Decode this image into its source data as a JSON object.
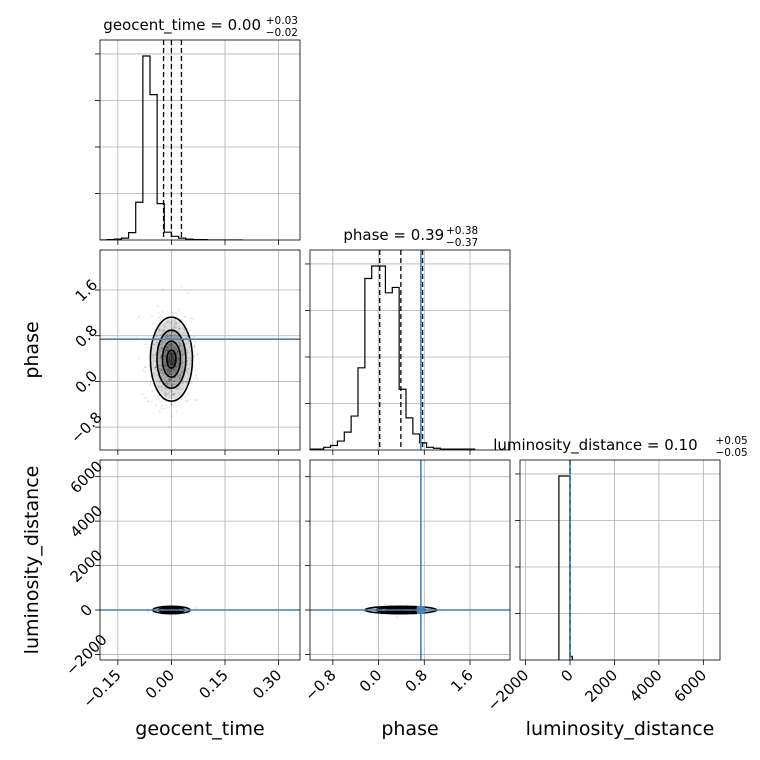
{
  "chart_data": {
    "type": "corner",
    "parameters": [
      {
        "name": "geocent_time",
        "axis_label": "geocent_time",
        "range": [
          -0.2,
          0.36
        ],
        "ticks": [
          -0.15,
          0.0,
          0.15,
          0.3
        ],
        "tick_labels": [
          "−0.15",
          "0.00",
          "0.15",
          "0.30"
        ],
        "median": 0.0,
        "plus": 0.03,
        "minus": 0.02,
        "title_prefix": "geocent_time = ",
        "title_value": "0.00",
        "title_plus": "+0.03",
        "title_minus": "−0.02",
        "quantiles": [
          -0.022,
          0.0,
          0.028
        ],
        "injection": null
      },
      {
        "name": "phase",
        "axis_label": "phase",
        "range": [
          -1.2,
          2.3
        ],
        "ticks": [
          -0.8,
          0.0,
          0.8,
          1.6
        ],
        "tick_labels": [
          "−0.8",
          "0.0",
          "0.8",
          "1.6"
        ],
        "median": 0.39,
        "plus": 0.38,
        "minus": 0.37,
        "title_prefix": "phase = ",
        "title_value": "0.39",
        "title_plus": "+0.38",
        "title_minus": "−0.37",
        "quantiles": [
          0.02,
          0.39,
          0.77
        ],
        "injection": 0.74
      },
      {
        "name": "luminosity_distance",
        "axis_label": "luminosity_distance",
        "range": [
          -2250,
          6750
        ],
        "ticks": [
          -2000,
          0,
          2000,
          4000,
          6000
        ],
        "tick_labels": [
          "−2000",
          "0",
          "2000",
          "4000",
          "6000"
        ],
        "median": 0.1,
        "plus": 0.05,
        "minus": 0.05,
        "title_prefix": "luminosity_distance = ",
        "title_value": "0.10",
        "title_plus": "+0.05",
        "title_minus": "−0.05",
        "quantiles": [
          -0.05,
          0.1,
          0.15
        ],
        "injection": 0
      }
    ],
    "hist1d": [
      {
        "bins_x": [
          -0.2,
          -0.18,
          -0.16,
          -0.14,
          -0.12,
          -0.1,
          -0.08,
          -0.06,
          -0.04,
          -0.02,
          0.0,
          0.02,
          0.04,
          0.06,
          0.08,
          0.1,
          0.12,
          0.14,
          0.16,
          0.18,
          0.2
        ],
        "counts": [
          0,
          1,
          2,
          4,
          16,
          82,
          400,
          316,
          79,
          17,
          8,
          4,
          2,
          1,
          1,
          0,
          0,
          0,
          0,
          0
        ]
      },
      {
        "bins_x": [
          -1.2,
          -1.08,
          -0.96,
          -0.84,
          -0.72,
          -0.6,
          -0.48,
          -0.36,
          -0.24,
          -0.12,
          0.0,
          0.12,
          0.24,
          0.36,
          0.48,
          0.6,
          0.72,
          0.84,
          0.96,
          1.08,
          1.2,
          1.32,
          1.44,
          1.56,
          1.68
        ],
        "counts": [
          1,
          1,
          3,
          5,
          10,
          20,
          38,
          92,
          192,
          206,
          206,
          176,
          182,
          68,
          36,
          18,
          8,
          3,
          2,
          1,
          1,
          1,
          1,
          1
        ]
      },
      {
        "bins_x": [
          -500,
          0,
          100
        ],
        "counts": [
          100,
          2
        ]
      }
    ],
    "injection_color": "#4682b4",
    "panel_frame_color": "#000000",
    "grid_color": "#b0b0b0"
  }
}
